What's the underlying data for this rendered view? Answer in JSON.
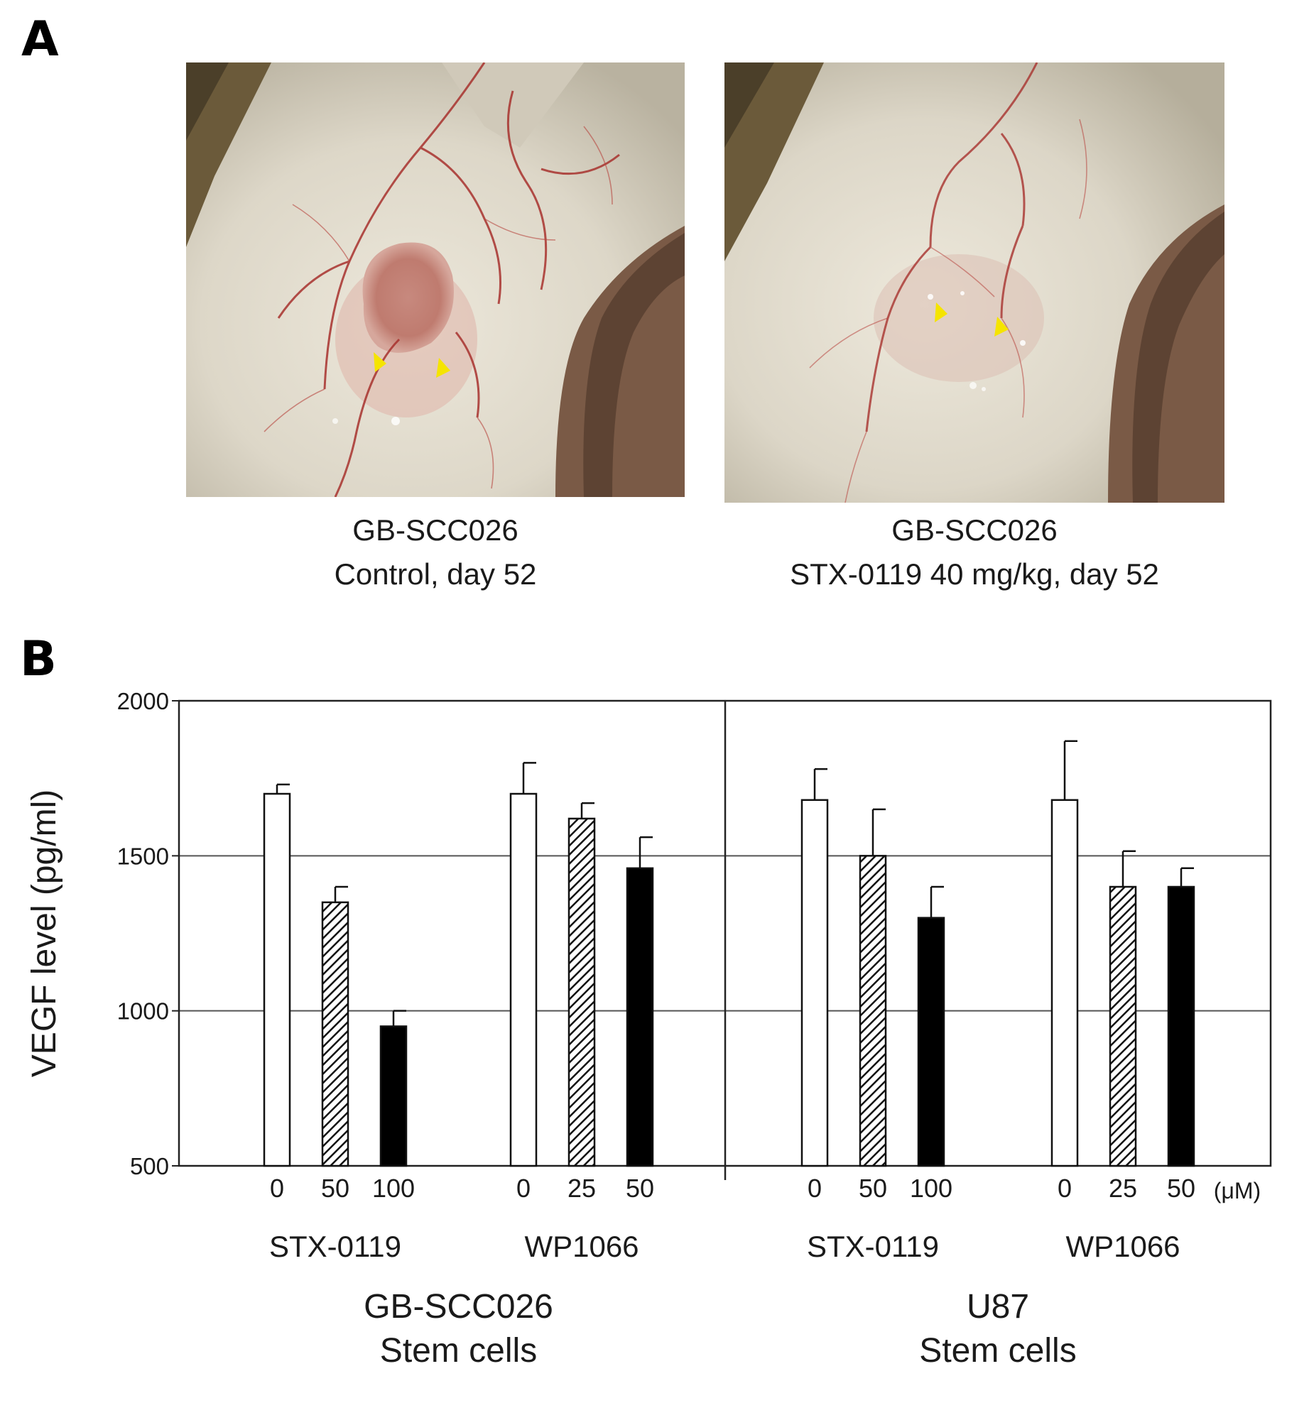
{
  "panel_a": {
    "letter": "A",
    "left_image": {
      "caption_line1": "GB-SCC026",
      "caption_line2": "Control, day 52"
    },
    "right_image": {
      "caption_line1": "GB-SCC026",
      "caption_line2": "STX-0119  40 mg/kg, day 52"
    },
    "colors": {
      "arrowhead": "#f5e400",
      "tissue": "#e6e0d2",
      "vessel": "#a8322e",
      "tumor": "#c77d72"
    }
  },
  "panel_b": {
    "letter": "B"
  },
  "chart_data": {
    "type": "bar",
    "ylabel": "VEGF level  (pg/ml)",
    "ylim": [
      500,
      2000
    ],
    "yticks": [
      500,
      1000,
      1500,
      2000
    ],
    "grid_y": [
      1000,
      1500
    ],
    "unit_label": "(μM)",
    "groups": [
      {
        "cell_line_line1": "GB-SCC026",
        "cell_line_line2": "Stem cells",
        "drugs": [
          {
            "name": "STX-0119",
            "bars": [
              {
                "dose": "0",
                "value": 1700,
                "error": 30,
                "pattern": "white"
              },
              {
                "dose": "50",
                "value": 1350,
                "error": 50,
                "pattern": "hatched"
              },
              {
                "dose": "100",
                "value": 950,
                "error": 50,
                "pattern": "black"
              }
            ]
          },
          {
            "name": "WP1066",
            "bars": [
              {
                "dose": "0",
                "value": 1700,
                "error": 100,
                "pattern": "white"
              },
              {
                "dose": "25",
                "value": 1620,
                "error": 50,
                "pattern": "hatched"
              },
              {
                "dose": "50",
                "value": 1460,
                "error": 100,
                "pattern": "black"
              }
            ]
          }
        ]
      },
      {
        "cell_line_line1": "U87",
        "cell_line_line2": "Stem cells",
        "drugs": [
          {
            "name": "STX-0119",
            "bars": [
              {
                "dose": "0",
                "value": 1680,
                "error": 100,
                "pattern": "white"
              },
              {
                "dose": "50",
                "value": 1500,
                "error": 150,
                "pattern": "hatched"
              },
              {
                "dose": "100",
                "value": 1300,
                "error": 100,
                "pattern": "black"
              }
            ]
          },
          {
            "name": "WP1066",
            "bars": [
              {
                "dose": "0",
                "value": 1680,
                "error": 190,
                "pattern": "white"
              },
              {
                "dose": "25",
                "value": 1400,
                "error": 115,
                "pattern": "hatched"
              },
              {
                "dose": "50",
                "value": 1400,
                "error": 60,
                "pattern": "black"
              }
            ]
          }
        ]
      }
    ]
  }
}
